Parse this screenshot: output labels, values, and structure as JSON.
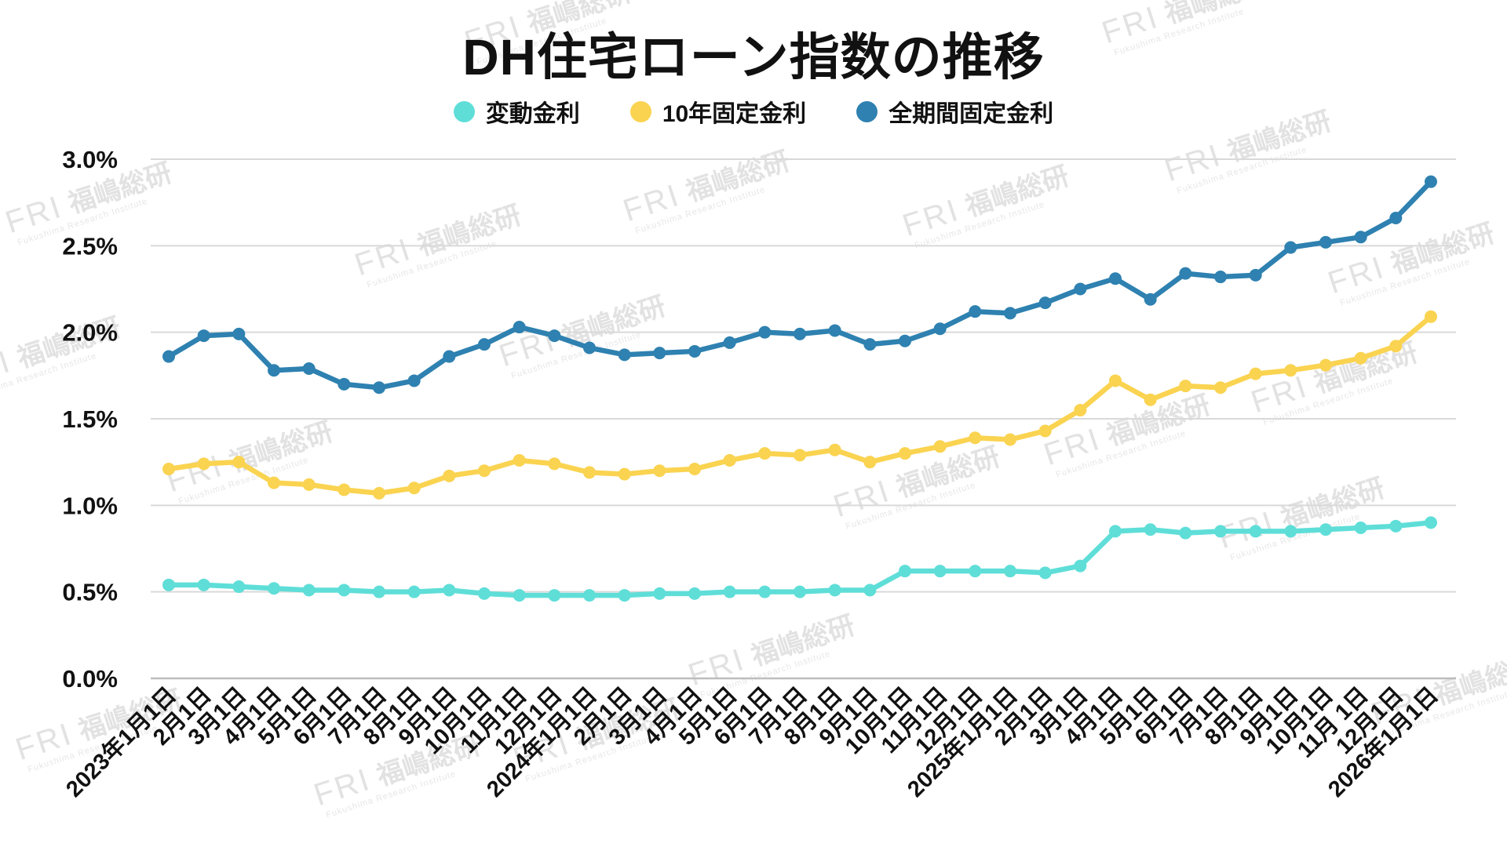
{
  "title": "DH住宅ローン指数の推移",
  "watermark": {
    "logo": "FRI",
    "name": "福嶋総研",
    "subtitle": "Fukushima Research Institute"
  },
  "chart_data": {
    "type": "line",
    "title": "DH住宅ローン指数の推移",
    "xlabel": "",
    "ylabel": "",
    "ylim": [
      0,
      3.0
    ],
    "ytick_labels": [
      "0.0%",
      "0.5%",
      "1.0%",
      "1.5%",
      "2.0%",
      "2.5%",
      "3.0%"
    ],
    "grid": true,
    "legend_position": "top",
    "categories": [
      "2023年1月1日",
      "2月1日",
      "3月1日",
      "4月1日",
      "5月1日",
      "6月1日",
      "7月1日",
      "8月1日",
      "9月1日",
      "10月1日",
      "11月1日",
      "12月1日",
      "2024年1月1日",
      "2月1日",
      "3月1日",
      "4月1日",
      "5月1日",
      "6月1日",
      "7月1日",
      "8月1日",
      "9月1日",
      "10月1日",
      "11月1日",
      "12月1日",
      "2025年1月1日",
      "2月1日",
      "3月1日",
      "4月1日",
      "5月1日",
      "6月1日",
      "7月1日",
      "8月1日",
      "9月1日",
      "10月1日",
      "11月 1日",
      "12月1日",
      "2026年1月1日"
    ],
    "series": [
      {
        "key": "variable-rate",
        "name": "変動金利",
        "color": "#5fded8",
        "values": [
          0.54,
          0.54,
          0.53,
          0.52,
          0.51,
          0.51,
          0.5,
          0.5,
          0.51,
          0.49,
          0.48,
          0.48,
          0.48,
          0.48,
          0.49,
          0.49,
          0.5,
          0.5,
          0.5,
          0.51,
          0.51,
          0.62,
          0.62,
          0.62,
          0.62,
          0.61,
          0.65,
          0.85,
          0.86,
          0.84,
          0.85,
          0.85,
          0.85,
          0.86,
          0.87,
          0.88,
          0.9
        ]
      },
      {
        "key": "ten-year-fixed",
        "name": "10年固定金利",
        "color": "#fad350",
        "values": [
          1.21,
          1.24,
          1.25,
          1.13,
          1.12,
          1.09,
          1.07,
          1.1,
          1.17,
          1.2,
          1.26,
          1.24,
          1.19,
          1.18,
          1.2,
          1.21,
          1.26,
          1.3,
          1.29,
          1.32,
          1.25,
          1.3,
          1.34,
          1.39,
          1.38,
          1.43,
          1.55,
          1.72,
          1.61,
          1.69,
          1.68,
          1.76,
          1.78,
          1.81,
          1.85,
          1.92,
          2.09
        ]
      },
      {
        "key": "full-term-fixed",
        "name": "全期間固定金利",
        "color": "#2e81b0",
        "values": [
          1.86,
          1.98,
          1.99,
          1.78,
          1.79,
          1.7,
          1.68,
          1.72,
          1.86,
          1.93,
          2.03,
          1.98,
          1.91,
          1.87,
          1.88,
          1.89,
          1.94,
          2.0,
          1.99,
          2.01,
          1.93,
          1.95,
          2.02,
          2.12,
          2.11,
          2.17,
          2.25,
          2.31,
          2.19,
          2.34,
          2.32,
          2.33,
          2.49,
          2.52,
          2.55,
          2.66,
          2.87
        ]
      }
    ]
  }
}
